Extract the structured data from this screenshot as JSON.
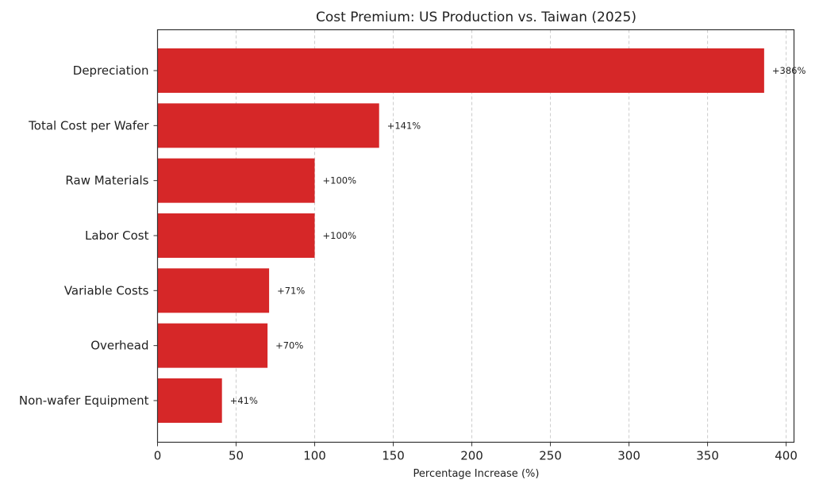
{
  "chart_data": {
    "type": "bar",
    "orientation": "horizontal",
    "title": "Cost Premium: US Production vs. Taiwan (2025)",
    "xlabel": "Percentage Increase (%)",
    "ylabel": "",
    "categories": [
      "Depreciation",
      "Total Cost per Wafer",
      "Raw Materials",
      "Labor Cost",
      "Variable Costs",
      "Overhead",
      "Non-wafer Equipment"
    ],
    "values": [
      386,
      141,
      100,
      100,
      71,
      70,
      41
    ],
    "data_labels": [
      "+386%",
      "+141%",
      "+100%",
      "+100%",
      "+71%",
      "+70%",
      "+41%"
    ],
    "xlim": [
      0,
      405
    ],
    "xticks": [
      0,
      50,
      100,
      150,
      200,
      250,
      300,
      350,
      400
    ],
    "grid": "x-dashed",
    "bar_color": "#d62728"
  }
}
